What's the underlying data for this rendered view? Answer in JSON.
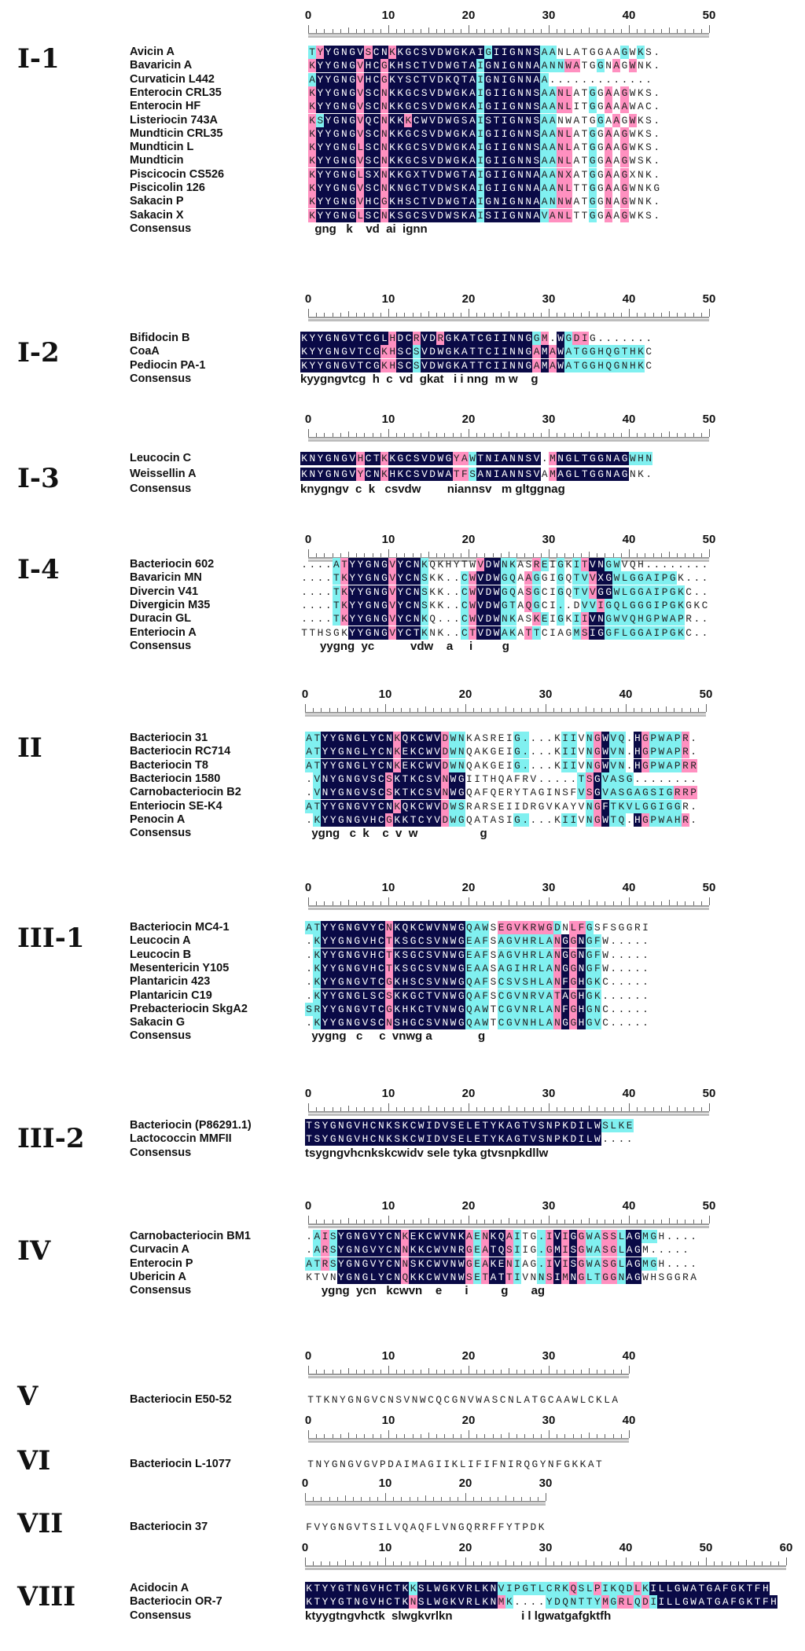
{
  "colors": {
    "conserved": "#0a0a46",
    "partial": "#ff90c0",
    "similar": "#80f0f0"
  },
  "groups": [
    {
      "label": "I-1",
      "ruler": [
        0,
        10,
        20,
        30,
        40,
        50
      ],
      "sequences": [
        {
          "name": "Avicin A",
          "seq": "TYYGNGVSCNKKGCSVDWGKAIGIIGNNSAANLATGGAAGWKS.",
          "marks": "cmkkkkkmkkmkkkkkkkkkkkckkkkkkcc........c.c...."
        },
        {
          "name": "Bavaricin A",
          "seq": "KYYGNGVHCGKHSCTVDWGTAIGNIGNNAANNWATGGNAGWNK.",
          "marks": "mkkkkkmkkmkkkkkkkkkkkckkkkkkkcccmm..c.m.m...."
        },
        {
          "name": "Curvaticin L442",
          "seq": "AYYGNGVHCGKYSCTVDKQTAIGNIGNNAA.............",
          "marks": "ckkkkkmkkmkkkkkkkkkkkckkkkkkkc............."
        },
        {
          "name": "Enterocin CRL35",
          "seq": "KYYGNGVSCNKKGCSVDWGKAIGIIGNNSAANLATGGAAGWKS.",
          "marks": "mkkkkkmkkmkkkkkkkkkkkckkkkkkkccmm..c.m.m...."
        },
        {
          "name": "Enterocin HF",
          "seq": "KYYGNGVSCNKKGCSVDWGKAIGIIGNNSAANLITGGAAAWAC.",
          "marks": "mkkkkkmkkmkkkkkkkkkkkckkkkkkkccmm..c.m.m...."
        },
        {
          "name": "Listeriocin 743A",
          "seq": "KSYGNGVQCNKKKCWVDWGSAISTIGNNSAANWATGGAAGWKS.",
          "marks": "mckkkkmkkmkkmkkkkkkkkckkkkkkkcc.....c.m.m...."
        },
        {
          "name": "Mundticin CRL35",
          "seq": "KYYGNGVSCNKKGCSVDWGKAIGIIGNNSAANLATGGAAGWKS.",
          "marks": "mkkkkkmkkmkkkkkkkkkkkckkkkkkkccmm..c.m.m...."
        },
        {
          "name": "Mundticin L",
          "seq": "KYYGNGLSCNKKGCSVDWGKAIGIIGNNSAANLATGGAAGWKS.",
          "marks": "mkkkkkmkkmkkkkkkkkkkkckkkkkkkccmm..c.m.m...."
        },
        {
          "name": "Mundticin",
          "seq": "KYYGNGVSCNKKGCSVDWGKAIGIIGNNSAANLATGGAAGWSK.",
          "marks": "mkkkkkmkkmkkkkkkkkkkkckkkkkkkccmm..c.m.m...."
        },
        {
          "name": "Piscicocin CS526",
          "seq": "KYYGNGLSXNKKGXTVDWGTAIGIIGNNAAANXATGGAAGXNK.",
          "marks": "mkkkkkmkkmkkkkkkkkkkkckkkkkkkccmm..c.m.m...."
        },
        {
          "name": "Piscicolin 126",
          "seq": "KYYGNGVSCNKNGCTVDWSKAIGIIGNNAAANLTTGGAAGWNKG",
          "marks": "mkkkkkmkkmkkkkkkkkkkkckkkkkkkccmm..c.m.m...."
        },
        {
          "name": "Sakacin P",
          "seq": "KYYGNGVHCGKHSCTVDWGTAIGNIGNNAANNWATGGNAGWNK.",
          "marks": "mkkkkkmkkmkkkkkkkkkkkckkkkkkkccmm..c.m.m...."
        },
        {
          "name": "Sakacin X",
          "seq": "KYYGNGLSCNKSGCSVDWSKAISIIGNNAVANLTTGGAAGWKS.",
          "marks": "mkkkkkmkkmkkkkkkkkkkkckkkkkkkcmmm..c.m.m...."
        }
      ],
      "consensus": "  gng   k    vd  ai  ignn"
    },
    {
      "label": "I-2",
      "ruler": [
        0,
        10,
        20,
        30,
        40,
        50
      ],
      "sequences": [
        {
          "name": "Bifidocin B",
          "seq": "KYYGNGVTCGLHDCRVDRGKATCGIINNGGM.WGDIG.......",
          "marks": "kkkkkkkkkkkmkkmkkmkkkkkkkkkkkcm.kcmm......."
        },
        {
          "name": "CoaA",
          "seq": "KYYGNGVTCGKHSCSVDWGKATTCIINNGAMAWATGGHQGTHKC",
          "marks": "kkkkkkkkkkmmkkckkkkkkkkkkkkkkmkmkcccccccccc"
        },
        {
          "name": "Pediocin PA-1",
          "seq": "KYYGNGVTCGKHSCSVDWGKATTCIINNGAMAWATGGHQGNHKC",
          "marks": "kkkkkkkkkkmmkkckkkkkkkkkkkkkkmkmkcccccccccc"
        }
      ],
      "consensus": "kyygngvtcg  h  c  vd  gkat   i i nng  m w    g"
    },
    {
      "label": "I-3",
      "ruler": [
        0,
        10,
        20,
        30,
        40,
        50
      ],
      "sequences": [
        {
          "name": "Leucocin C",
          "seq": "KNYGNGVHCTKKGCSVDWGYAWTNIANNSV.MNGLTGGNAGWHN",
          "marks": "kkkkkkkmkkmkkkkkkkkmmckkkkkkkk.mkkkkkkkkkccc"
        },
        {
          "name": "Weissellin A",
          "seq": "KNYGNGVYCNKHKCSVDWATFSANIANNSVAMAGLTGGNAGNK.",
          "marks": "kkkkkkkmkkmkkkkkkkkmmckkkkkkkk.mkkkkkkkkk..."
        }
      ],
      "consensus": "knygngv  c  k   csvdw        niannsv   m gltggnag"
    },
    {
      "label": "I-4",
      "ruler": [
        0,
        10,
        20,
        30,
        40,
        50
      ],
      "sequences": [
        {
          "name": "Bacteriocin 602",
          "seq": "....ATYYGNGVYCNKQKHYTWVDWNKASREIGKITVNGWVQH........",
          "marks": "....cmkkkkkmkkkc......mkkcc..mc.c.cmkkcc........"
        },
        {
          "name": "Bavaricin MN",
          "seq": "....TKYYGNGVYCNSKK..CWVDWGQAAGGIGQTVVXGWLGGAIPGK...",
          "marks": "....cmkkkkkmkkkc....cmkkkcc.mc..c.ccmkkcccccccc..."
        },
        {
          "name": "Divercin V41",
          "seq": "....TKYYGNGVYCNSKK..CWVDWGQASGCIGQTVVGGWLGGAIPGKC..",
          "marks": "....cmkkkkkmkkkc....cmkkkcc.mc..c.ccmkkccccccccc.."
        },
        {
          "name": "Divergicin M35",
          "seq": "....TKYYGNGVYCNSKK..CWVDWGTAQGCI..DVVIGQLGGGIPGKGKC",
          "marks": "....cmkkkkkmkkkc....cmkkkcc.mc..c..ccmcccccccccc..."
        },
        {
          "name": "Duracin GL",
          "seq": "....TKYYGNGVYCNKQ...CWVDWNKASKEIGKIIVNGWVQHGPWAPR..",
          "marks": "....cmkkkkkmkkkc....cmkkkcc..mc.c.cmkkcccccccccc.."
        },
        {
          "name": "Enteriocin A",
          "seq": "TTHSGKYYGNGVYCTKNK..CTVDWAKATTCIAGMSIGGFLGGAIPGKC..",
          "marks": "......kkkkkmkkkc....cmkkkcc.mc....cmkkcccccccccc.."
        }
      ],
      "consensus": "      yygng  yc           vdw    a     i         g"
    },
    {
      "label": "II",
      "ruler": [
        0,
        10,
        20,
        30,
        40,
        50
      ],
      "sequences": [
        {
          "name": "Bacteriocin 31",
          "seq": "ATYYGNGLYCNKQKCWVDWNKASREIG....KIIVNGWVQ.HGPWAPR.",
          "marks": "cckkkkkkkkkmkkkkkmcc......cc....cc.cmkcc.kmccccm."
        },
        {
          "name": "Bacteriocin  RC714",
          "seq": "ATYYGNGLYCNKEKCWVDWNQAKGEIG....KIIVNGWVN.HGPWAPR.",
          "marks": "cckkkkkkkkkmkkkkkmcc......cc....cc.cmkcc.kmccccm."
        },
        {
          "name": "Bacteriocin T8",
          "seq": "ATYYGNGLYCNKEKCWVDWNQAKGEIG....KIIVNGWVN.HGPWAPRR",
          "marks": "cckkkkkkkkkmkkkkkmcc......cc....cc.cmkcc.kmccccmm"
        },
        {
          "name": "Bacteriocin 1580",
          "seq": ".VNYGNGVSCSKTKCSVNWGIITHQAFRV.....TSGVASG........",
          "marks": ".ckkkkkkkkmkkkkkkmkk..............cmkcccc........"
        },
        {
          "name": "Carnobacteriocin B2",
          "seq": ".VNYGNGVSCSKTKCSVNWGQAFQERYTAGINSFVSGVASGAGSIGRRP",
          "marks": ".ckkkkkkkkmkkkkkkmkk..............cmkcccccccccmmm"
        },
        {
          "name": "Enteriocin SE-K4",
          "seq": "ATYYGNGVYCNKQKCWVDWSRARSEIIDRGVKAYVNGFTKVLGGIGGR.",
          "marks": "cckkkkkkkkkmkkkkkmcc...............cmkccccccccc.."
        },
        {
          "name": "Penocin A",
          "seq": ".KYYGNGVHCGKKTCYVDWGQATASIG....KIIVNGWTQ.HGPWAHR.",
          "marks": ".ckkkkkkkkmkkkkkkmcc......cc....cc.cmkcc.kmccccm."
        }
      ],
      "consensus": "  ygng   c  k    c  v  w                   g"
    },
    {
      "label": "III-1",
      "ruler": [
        0,
        10,
        20,
        30,
        40,
        50
      ],
      "sequences": [
        {
          "name": "Bacteriocin MC4-1",
          "seq": "ATYYGNGVYCNKQKCWVNWGQAWSEGVKRWGDNLFGSFSGGRI",
          "marks": "cckkkkkkkkmkkkkkkkkkccc.mmmmmmmc.mmc......."
        },
        {
          "name": "Leucocin A",
          "seq": ".KYYGNGVHCTKSGCSVNWGEAFSAGVHRLANGGNGFW.....",
          "marks": ".ckkkkkkkkmkkkkkkkkkccc.cccccccmkmkcc......"
        },
        {
          "name": "Leucocin B",
          "seq": ".KYYGNGVHCTKSGCSVNWGEAFSAGVHRLANGGNGFW.....",
          "marks": ".ckkkkkkkkmkkkkkkkkkccc.cccccccmkmkcc......"
        },
        {
          "name": "Mesentericin Y105",
          "seq": ".KYYGNGVHCTKSGCSVNWGEAASAGIHRLANGGNGFW.....",
          "marks": ".ckkkkkkkkmkkkkkkkkkccc.cccccccmkmkcc......"
        },
        {
          "name": "Plantaricin 423",
          "seq": ".KYYGNGVTCGKHSCSVNWGQAFSCSVSHLANFGHGKC.....",
          "marks": ".ckkkkkkkkmkkkkkkkkkccc.cccccccmkmkcc......"
        },
        {
          "name": "Plantaricin C19",
          "seq": ".KYYGNGLSCSKKGCTVNWGQAFSCGVNRVATAGHGK......",
          "marks": ".ckkkkkkkkmkkkkkkkkkccc.cccccccmkmkcc......"
        },
        {
          "name": "Prebacteriocin SkgA2",
          "seq": "SRYYGNGVTCGKHKCTVNWGQAWTCGVNRLANFGHGNC.....",
          "marks": "cckkkkkkkkmkkkkkkkkkccc.cccccccmkmkcc......"
        },
        {
          "name": "Sakacin G",
          "seq": ".KYYGNGVSCNSHGCSVNWGQAWTCGVNHLANGGHGVC.....",
          "marks": ".ckkkkkkkkmkkkkkkkkkccc.cccccccmkmkcc......"
        }
      ],
      "consensus": "  yygng   c     c  vnwg a              g"
    },
    {
      "label": "III-2",
      "ruler": [
        0,
        10,
        20,
        30,
        40,
        50
      ],
      "sequences": [
        {
          "name": "Bacteriocin (P86291.1)",
          "seq": "TSYGNGVHCNKSKCWIDVSELETYKAGTVSNPKDILWSLKE",
          "marks": "kkkkkkkkkkkkkkkkkkkkkkkkkkkkkkkkkkkkkcccc"
        },
        {
          "name": "Lactococcin MMFII",
          "seq": "TSYGNGVHCNKSKCWIDVSELETYKAGTVSNPKDILW....",
          "marks": "kkkkkkkkkkkkkkkkkkkkkkkkkkkkkkkkkkkkk...."
        }
      ],
      "consensus": "tsygngvhcnkskcwidv sele tyka gtvsnpkdllw"
    },
    {
      "label": "IV",
      "ruler": [
        0,
        10,
        20,
        30,
        40,
        50
      ],
      "sequences": [
        {
          "name": "Carnobacteriocin BM1",
          "seq": ".AISYGNGVYCNKEKCWVNKAENKQAITG.IVIGGWASSLAGMGH....",
          "marks": ".cmckkkkkkkkmkkkkkkkmcmkkmc..cmkmkmccmmckkcc....."
        },
        {
          "name": "Curvacin A",
          "seq": ".ARSYGNGVYCNNKKCWVNRGEATQSIIG.GMISGWASGLAGM.....",
          "marks": ".cmckkkkkkkkmkkkkkkkmcmkkmc..cmkmkmccmmckk......."
        },
        {
          "name": "Enterocin P",
          "seq": "ATRSYGNGVYCNNSKCWVNWGEAKENIAG.IVISGWASGLAGMGH....",
          "marks": "ccmckkkkkkkkmkkkkkkkmcmkkmc..cmkmkmccmmckkcc....."
        },
        {
          "name": "Ubericin A",
          "seq": "KTVNYGNGLYCNQKKCWVNWSETATTIVNNSIMNGLTGGNAGWHSGGRA",
          "marks": "....kkkkkkkkmkkkkkkkmcmkkmc..cmkmkmccmmckk......."
        }
      ],
      "consensus": "     ygng  ycn   kcwvn    e       i          g       ag"
    },
    {
      "label": "V",
      "ruler": [
        0,
        10,
        20,
        30,
        40
      ],
      "sequences": [
        {
          "name": "Bacteriocin E50-52",
          "seq": "TTKNYGNGVCNSVNWCQCGNVWASCNLATGCAAWLCKLA",
          "marks": ""
        }
      ],
      "consensus": ""
    },
    {
      "label": "VI",
      "ruler": [
        0,
        10,
        20,
        30,
        40
      ],
      "sequences": [
        {
          "name": "Bacteriocin L-1077",
          "seq": "TNYGNGVGVPDAIMAGIIKLIFIFNIRQGYNFGKKAT",
          "marks": ""
        }
      ],
      "consensus": ""
    },
    {
      "label": "VII",
      "ruler": [
        0,
        10,
        20,
        30
      ],
      "sequences": [
        {
          "name": "Bacteriocin 37",
          "seq": "FVYGNGVTSILVQAQFLVNGQRRFFYTPDK",
          "marks": ""
        }
      ],
      "consensus": ""
    },
    {
      "label": "VIII",
      "ruler": [
        0,
        10,
        20,
        30,
        40,
        50,
        60
      ],
      "sequences": [
        {
          "name": "Acidocin A",
          "seq": "KTYYGTNGVHCTKKSLWGKVRLKNVIPGTLCRKQSLPIKQDLKILLGWATGAFGKTFH",
          "marks": "kkkkkkkkkkkkkckkkkkkkkkkcccccccccmccmccccmckkkkkkkkkkkkkkkk"
        },
        {
          "name": "Bacteriocin OR-7",
          "seq": "KTYYGTNGVHCTKNSLWGKVRLKNMK....YDQNTTYMGRLQDIILLGWATGAFGKTFH",
          "marks": "kkkkkkkkkkkkkmkkkkkkkkkkmc....cccccccmcmmcmckkkkkkkkkkkkkkkk"
        }
      ],
      "consensus": "ktyygtngvhctk  slwgkvrlkn                     i l lgwatgafgktfh"
    }
  ]
}
